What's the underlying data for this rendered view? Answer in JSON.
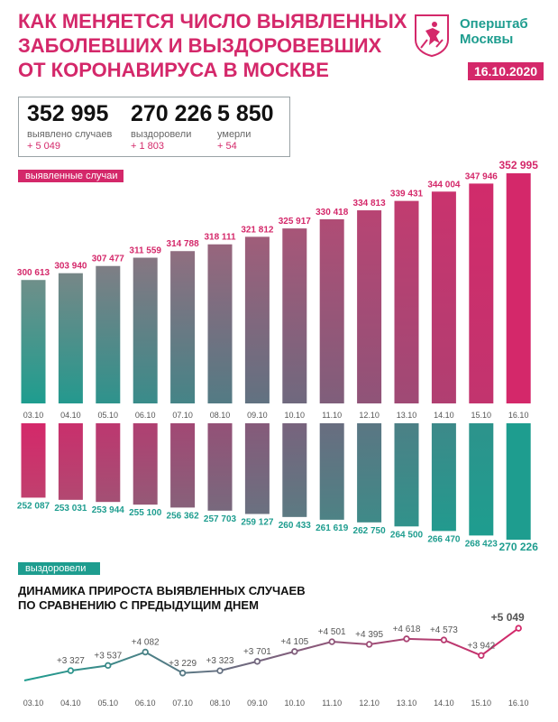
{
  "header": {
    "title_lines": [
      "Как меняется число выявленных",
      "заболевших и выздоровевших",
      "от коронавируса в Москве"
    ],
    "org_line1": "Оперштаб",
    "org_line2": "Москвы",
    "date": "16.10.2020"
  },
  "stats": [
    {
      "value": "352 995",
      "label": "выявлено случаев",
      "increment": "+ 5 049"
    },
    {
      "value": "270 226",
      "label": "выздоровели",
      "increment": "+ 1 803"
    },
    {
      "value": "5 850",
      "label": "умерли",
      "increment": "+ 54"
    }
  ],
  "sections": {
    "cases_label": "выявленные случаи",
    "recovered_label": "выздоровели",
    "growth_title_lines": [
      "Динамика прироста выявленных случаев",
      "по сравнению с предыдущим днем"
    ]
  },
  "colors": {
    "pink": "#d4286a",
    "teal": "#1e9d8f",
    "grey": "#6f8f8a"
  },
  "chart_data": [
    {
      "type": "bar",
      "title": "выявленные случаи",
      "categories": [
        "03.10",
        "04.10",
        "05.10",
        "06.10",
        "07.10",
        "08.10",
        "09.10",
        "10.10",
        "11.10",
        "12.10",
        "13.10",
        "14.10",
        "15.10",
        "16.10"
      ],
      "values": [
        300613,
        303940,
        307477,
        311559,
        314788,
        318111,
        321812,
        325917,
        330418,
        334813,
        339431,
        344004,
        347946,
        352995
      ],
      "labels": [
        "300 613",
        "303 940",
        "307 477",
        "311 559",
        "314 788",
        "318 111",
        "321 812",
        "325 917",
        "330 418",
        "334 813",
        "339 431",
        "344 004",
        "347 946",
        "352 995"
      ]
    },
    {
      "type": "bar",
      "title": "выздоровели",
      "categories": [
        "03.10",
        "04.10",
        "05.10",
        "06.10",
        "07.10",
        "08.10",
        "09.10",
        "10.10",
        "11.10",
        "12.10",
        "13.10",
        "14.10",
        "15.10",
        "16.10"
      ],
      "values": [
        252087,
        253031,
        253944,
        255100,
        256362,
        257703,
        259127,
        260433,
        261619,
        262750,
        264500,
        266470,
        268423,
        270226
      ],
      "labels": [
        "252 087",
        "253 031",
        "253 944",
        "255 100",
        "256 362",
        "257 703",
        "259 127",
        "260 433",
        "261 619",
        "262 750",
        "264 500",
        "266 470",
        "268 423",
        "270 226"
      ]
    },
    {
      "type": "line",
      "title": "Динамика прироста выявленных случаев по сравнению с предыдущим днем",
      "categories": [
        "03.10",
        "04.10",
        "05.10",
        "06.10",
        "07.10",
        "08.10",
        "09.10",
        "10.10",
        "11.10",
        "12.10",
        "13.10",
        "14.10",
        "15.10",
        "16.10"
      ],
      "values": [
        null,
        3327,
        3537,
        4082,
        3229,
        3323,
        3701,
        4105,
        4501,
        4395,
        4618,
        4573,
        3942,
        5049
      ],
      "labels": [
        "",
        "+3 327",
        "+3 537",
        "+4 082",
        "+3 229",
        "+3 323",
        "+3 701",
        "+4 105",
        "+4 501",
        "+4 395",
        "+4 618",
        "+4 573",
        "+3 942",
        "+5 049"
      ]
    }
  ]
}
